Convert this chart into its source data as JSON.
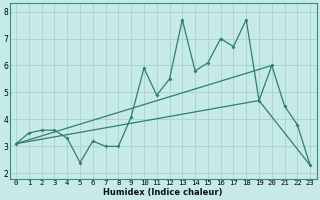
{
  "title": "",
  "xlabel": "Humidex (Indice chaleur)",
  "bg_color": "#c5eae8",
  "grid_color": "#afd4d0",
  "line_color": "#2e7d74",
  "xlim": [
    -0.5,
    23.5
  ],
  "ylim": [
    1.8,
    8.3
  ],
  "xticks": [
    0,
    1,
    2,
    3,
    4,
    5,
    6,
    7,
    8,
    9,
    10,
    11,
    12,
    13,
    14,
    15,
    16,
    17,
    18,
    19,
    20,
    21,
    22,
    23
  ],
  "yticks": [
    2,
    3,
    4,
    5,
    6,
    7,
    8
  ],
  "series1_x": [
    0,
    1,
    2,
    3,
    4,
    5,
    6,
    7,
    8,
    9,
    10,
    11,
    12,
    13,
    14,
    15,
    16,
    17,
    18,
    19,
    20,
    21,
    22,
    23
  ],
  "series1_y": [
    3.1,
    3.5,
    3.6,
    3.6,
    3.3,
    2.4,
    3.2,
    3.0,
    3.0,
    4.1,
    5.9,
    4.9,
    5.5,
    7.7,
    5.8,
    6.1,
    7.0,
    6.7,
    7.7,
    4.7,
    6.0,
    4.5,
    3.8,
    2.3
  ],
  "series2_x": [
    0,
    20
  ],
  "series2_y": [
    3.1,
    6.0
  ],
  "series3_x": [
    0,
    19,
    23
  ],
  "series3_y": [
    3.1,
    4.7,
    2.3
  ]
}
